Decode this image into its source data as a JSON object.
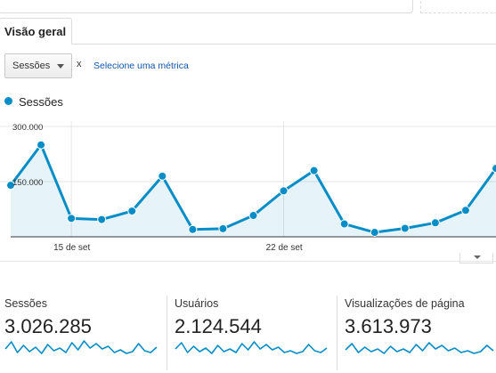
{
  "tab": {
    "label": "Visão geral"
  },
  "controls": {
    "metric_select": "Sessões",
    "remove": "x",
    "select_metric_link": "Selecione uma métrica"
  },
  "legend": {
    "series_label": "Sessões",
    "color": "#058dc7"
  },
  "chart_data": {
    "type": "area",
    "series": [
      {
        "name": "Sessões",
        "values": [
          140000,
          250000,
          50000,
          47000,
          70000,
          165000,
          20000,
          22000,
          58000,
          125000,
          180000,
          35000,
          12000,
          23000,
          38000,
          72000,
          186000
        ]
      }
    ],
    "x_tick_labels": [
      "15 de set",
      "22 de set"
    ],
    "x_tick_index": [
      2,
      9
    ],
    "y_tick_labels": [
      "300.000",
      "150.000"
    ],
    "y_ticks": [
      300000,
      150000
    ],
    "ylim": [
      0,
      305000
    ],
    "grid": true,
    "color": "#058dc7"
  },
  "kpis": [
    {
      "label": "Sessões",
      "value": "3.026.285"
    },
    {
      "label": "Usuários",
      "value": "2.124.544"
    },
    {
      "label": "Visualizações de página",
      "value": "3.613.973"
    }
  ],
  "sparklines": [
    [
      0.5,
      0.9,
      0.3,
      0.7,
      0.35,
      0.6,
      0.25,
      0.75,
      0.4,
      0.55,
      0.3,
      0.85,
      0.45,
      0.95,
      0.55,
      0.8,
      0.5,
      0.65,
      0.3,
      0.45,
      0.25,
      0.35,
      0.8,
      0.4,
      0.3,
      0.6
    ],
    [
      0.5,
      0.85,
      0.3,
      0.65,
      0.35,
      0.55,
      0.25,
      0.7,
      0.35,
      0.5,
      0.3,
      0.8,
      0.45,
      0.9,
      0.5,
      0.75,
      0.45,
      0.6,
      0.3,
      0.4,
      0.25,
      0.35,
      0.75,
      0.4,
      0.3,
      0.55
    ],
    [
      0.45,
      0.8,
      0.3,
      0.6,
      0.35,
      0.5,
      0.25,
      0.65,
      0.35,
      0.5,
      0.3,
      0.75,
      0.4,
      0.85,
      0.5,
      0.7,
      0.4,
      0.55,
      0.3,
      0.4,
      0.25,
      0.35,
      0.7,
      0.4
    ]
  ]
}
